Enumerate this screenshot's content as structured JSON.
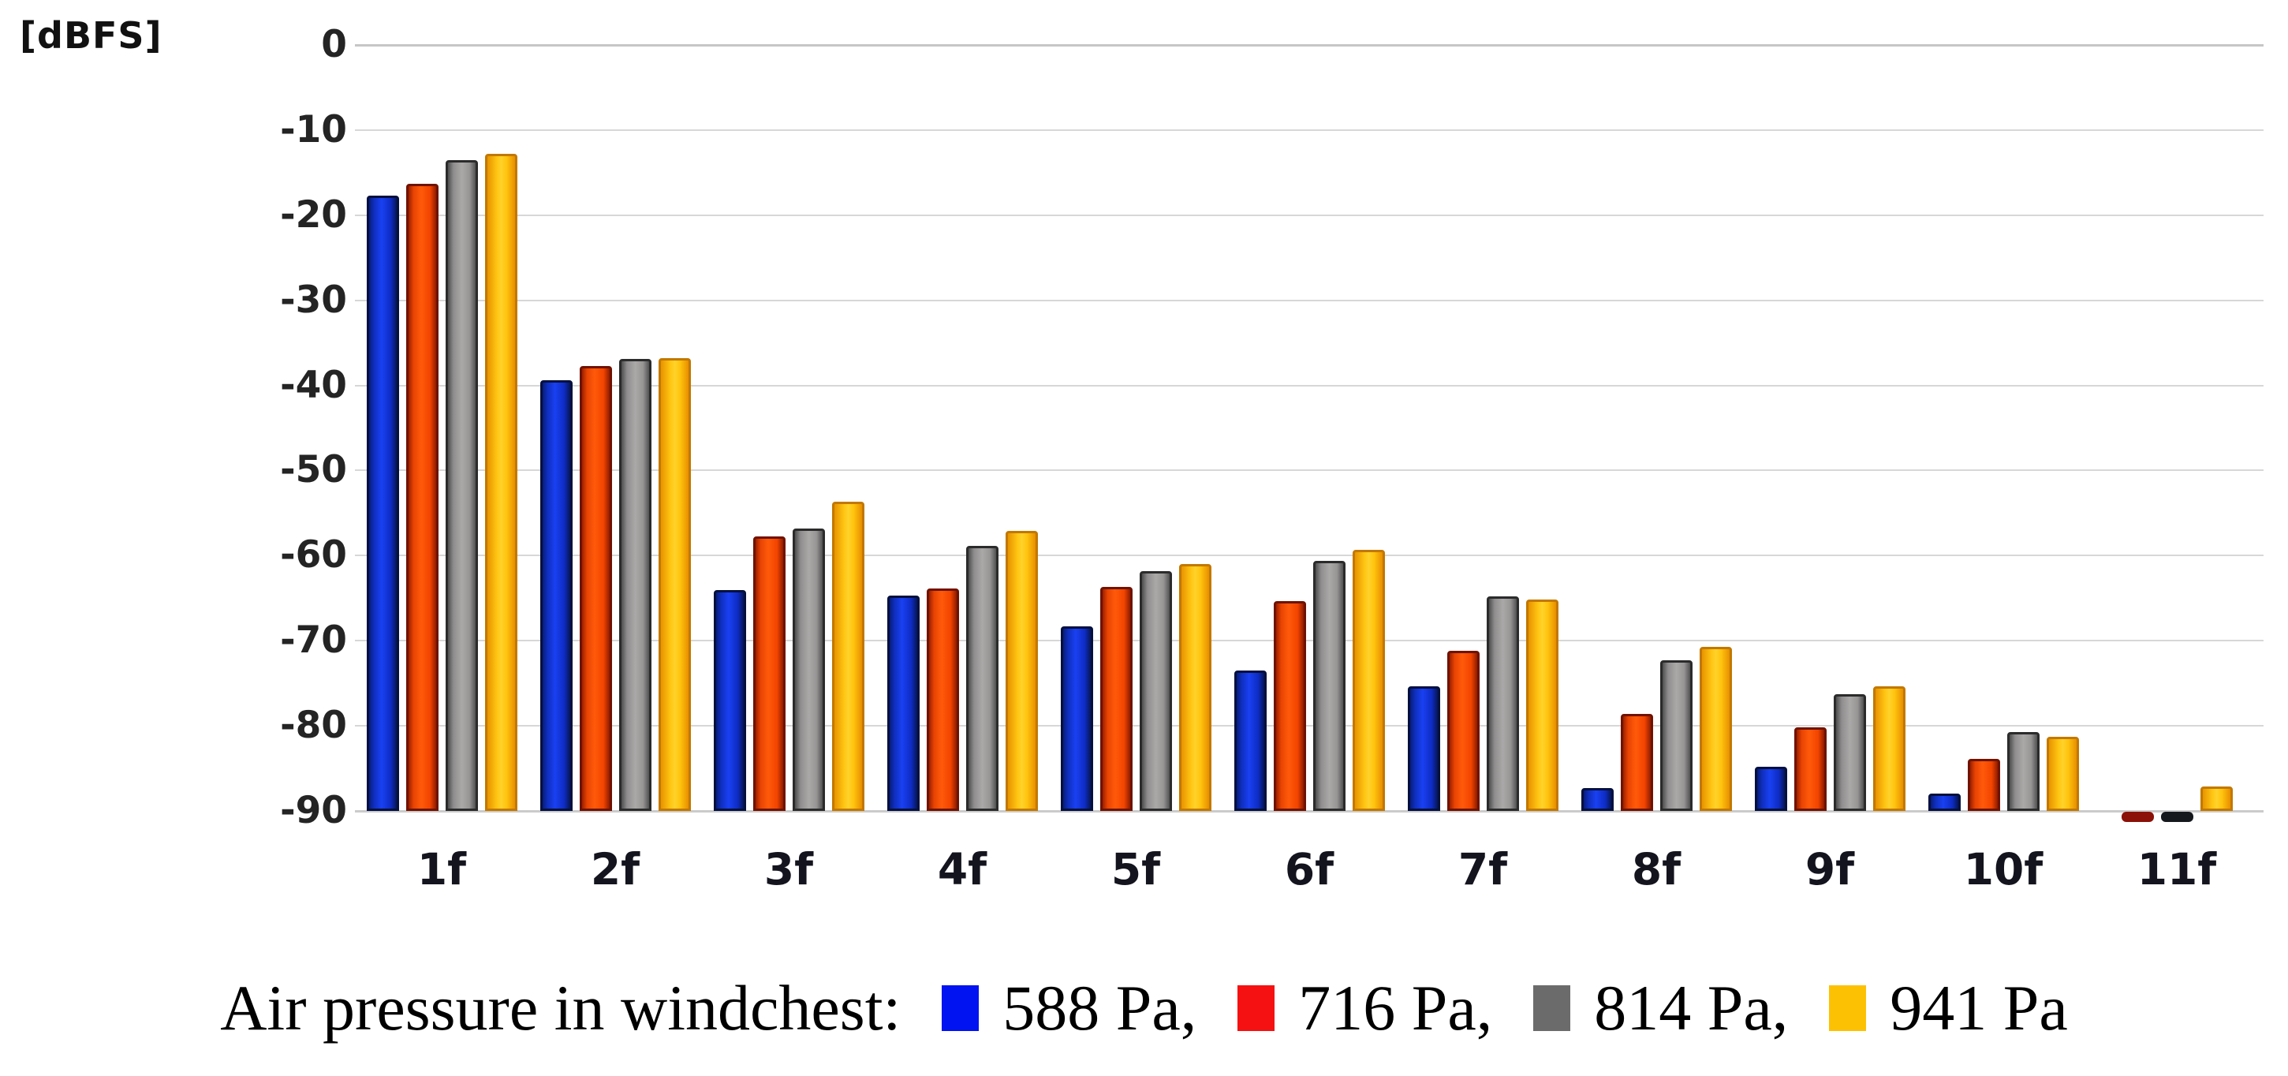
{
  "unit_label": "[dBFS]",
  "y_axis": {
    "ticks": [
      "0",
      "-10",
      "-20",
      "-30",
      "-40",
      "-50",
      "-60",
      "-70",
      "-80",
      "-90"
    ],
    "tick_values": [
      0,
      -10,
      -20,
      -30,
      -40,
      -50,
      -60,
      -70,
      -80,
      -90
    ],
    "min": -90,
    "max": 0
  },
  "legend": {
    "prefix": "Air pressure in windchest:",
    "items": [
      {
        "label": "588 Pa,",
        "color": "#0013f0"
      },
      {
        "label": "716 Pa,",
        "color": "#f51111"
      },
      {
        "label": "814 Pa,",
        "color": "#6b6b6b"
      },
      {
        "label": "941 Pa",
        "color": "#fdc104"
      }
    ]
  },
  "chart_data": {
    "type": "bar",
    "title": "",
    "ylabel": "[dBFS]",
    "xlabel": "",
    "ylim": [
      -90,
      0
    ],
    "grid": true,
    "legend_position": "bottom",
    "categories": [
      "1f",
      "2f",
      "3f",
      "4f",
      "5f",
      "6f",
      "7f",
      "8f",
      "9f",
      "10f",
      "11f"
    ],
    "series": [
      {
        "name": "588 Pa",
        "color": "#1535d8",
        "dash_color": "#0a1f7a",
        "values": [
          -17.7,
          -39.4,
          -64.0,
          -64.7,
          -68.3,
          -73.5,
          -75.4,
          -87.3,
          -84.8,
          -88.0,
          null
        ]
      },
      {
        "name": "716 Pa",
        "color": "#fb4a02",
        "dash_color": "#8b1007",
        "values": [
          -16.3,
          -37.7,
          -57.7,
          -63.9,
          -63.7,
          -65.3,
          -71.2,
          -78.6,
          -80.2,
          -83.9,
          -90.3
        ]
      },
      {
        "name": "814 Pa",
        "color": "#9b9899",
        "dash_color": "#15181c",
        "values": [
          -13.5,
          -36.9,
          -56.8,
          -58.9,
          -61.8,
          -60.6,
          -64.8,
          -72.3,
          -76.3,
          -80.7,
          -90.3
        ]
      },
      {
        "name": "941 Pa",
        "color": "#ffc30d",
        "dash_color": "#c77c00",
        "values": [
          -12.8,
          -36.8,
          -53.7,
          -57.1,
          -61.0,
          -59.3,
          -65.2,
          -70.7,
          -75.4,
          -81.3,
          -87.1
        ]
      }
    ],
    "note_clipped": "values at or below -90 dBFS are drawn as short dashes just below the axis baseline"
  }
}
